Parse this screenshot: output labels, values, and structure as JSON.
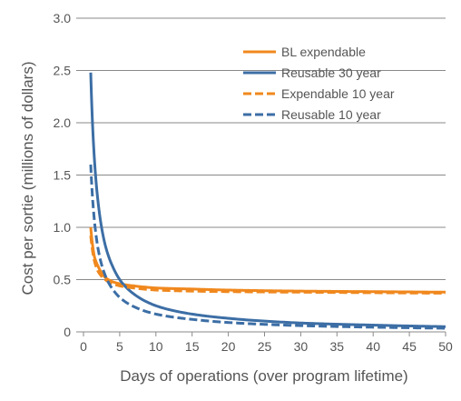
{
  "chart_data": {
    "type": "line",
    "title": "",
    "xlabel": "Days of operations (over program lifetime)",
    "ylabel": "Cost per sortie (millions of dollars)",
    "xlim": [
      0,
      50
    ],
    "ylim": [
      0,
      3.0
    ],
    "x_ticks": [
      "0",
      "5",
      "10",
      "15",
      "20",
      "25",
      "30",
      "35",
      "40",
      "45",
      "50"
    ],
    "y_ticks": [
      "0",
      "0.5",
      "1.0",
      "1.5",
      "2.0",
      "2.5",
      "3.0"
    ],
    "grid": "horizontal",
    "legend_position": "top-right",
    "series": [
      {
        "name": "BL expendable",
        "color": "#f0881e",
        "style": "solid",
        "x": [
          1,
          1.5,
          2,
          3,
          4,
          5,
          7,
          10,
          15,
          20,
          30,
          40,
          50
        ],
        "y": [
          1.0,
          0.72,
          0.63,
          0.52,
          0.48,
          0.46,
          0.44,
          0.42,
          0.41,
          0.4,
          0.39,
          0.385,
          0.38
        ]
      },
      {
        "name": "Reusable 30 year",
        "color": "#3c6ea5",
        "style": "solid",
        "x": [
          1,
          1.5,
          2,
          3,
          4,
          5,
          7,
          10,
          15,
          20,
          30,
          40,
          50
        ],
        "y": [
          2.48,
          1.66,
          1.25,
          0.83,
          0.63,
          0.5,
          0.36,
          0.25,
          0.17,
          0.13,
          0.085,
          0.065,
          0.05
        ]
      },
      {
        "name": "Expendable 10 year",
        "color": "#f0881e",
        "style": "dashed",
        "x": [
          1,
          1.5,
          2,
          3,
          4,
          5,
          7,
          10,
          15,
          20,
          30,
          40,
          50
        ],
        "y": [
          0.92,
          0.68,
          0.58,
          0.5,
          0.46,
          0.44,
          0.42,
          0.4,
          0.39,
          0.385,
          0.38,
          0.375,
          0.37
        ]
      },
      {
        "name": "Reusable 10 year",
        "color": "#3c6ea5",
        "style": "dashed",
        "x": [
          1,
          1.5,
          2,
          3,
          4,
          5,
          7,
          10,
          15,
          20,
          30,
          40,
          50
        ],
        "y": [
          1.6,
          1.07,
          0.8,
          0.54,
          0.41,
          0.33,
          0.24,
          0.17,
          0.12,
          0.09,
          0.06,
          0.045,
          0.035
        ]
      }
    ]
  }
}
